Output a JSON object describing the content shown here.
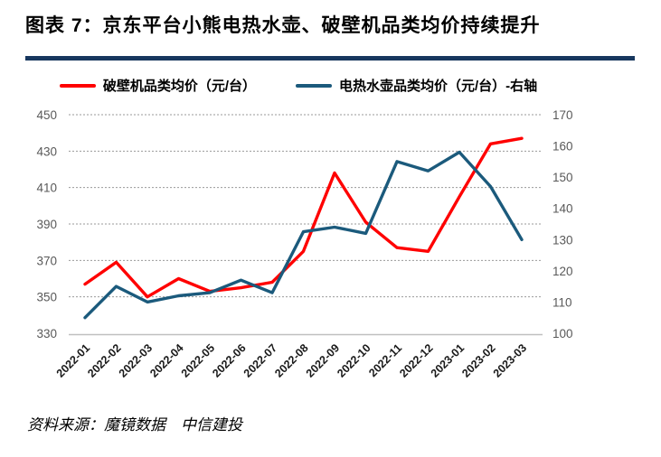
{
  "header": {
    "title": "图表 7：京东平台小熊电热水壶、破壁机品类均价持续提升"
  },
  "footer": {
    "source": "资料来源：魔镜数据　中信建投"
  },
  "colors": {
    "divider_navy": "#17375E",
    "red_series": "#FF0000",
    "blue_series": "#1B5A7C",
    "tick_label_gray": "#595959",
    "gridline_gray": "#999999",
    "axis_line_gray": "#BFBFBF",
    "x_label_black": "#1a1a1a"
  },
  "chart_data": {
    "type": "line",
    "title": "图表 7：京东平台小熊电热水壶、破壁机品类均价持续提升",
    "categories": [
      "2022-01",
      "2022-02",
      "2022-03",
      "2022-04",
      "2022-05",
      "2022-06",
      "2022-07",
      "2022-08",
      "2022-09",
      "2022-10",
      "2022-11",
      "2022-12",
      "2023-01",
      "2023-02",
      "2023-03"
    ],
    "series": [
      {
        "name": "破壁机品类均价（元/台）",
        "axis": "left",
        "color": "#FF0000",
        "values": [
          357,
          369,
          350,
          360,
          353,
          355,
          358,
          375,
          418,
          391,
          377,
          375,
          405,
          434,
          437
        ]
      },
      {
        "name": "电热水壶品类均价（元/台）-右轴",
        "axis": "right",
        "color": "#1B5A7C",
        "values": [
          105,
          115,
          110,
          112,
          113,
          117,
          113,
          132.5,
          134,
          132,
          155,
          152,
          158,
          147,
          130
        ]
      }
    ],
    "left_axis": {
      "min": 330,
      "max": 450,
      "step": 20,
      "ticks": [
        450,
        430,
        410,
        390,
        370,
        350,
        330
      ]
    },
    "right_axis": {
      "min": 100,
      "max": 170,
      "step": 10,
      "ticks": [
        170,
        160,
        150,
        140,
        130,
        120,
        110,
        100
      ]
    },
    "grid": "horizontal-dashed",
    "legend_position": "top",
    "x_label_rotation": -45
  }
}
